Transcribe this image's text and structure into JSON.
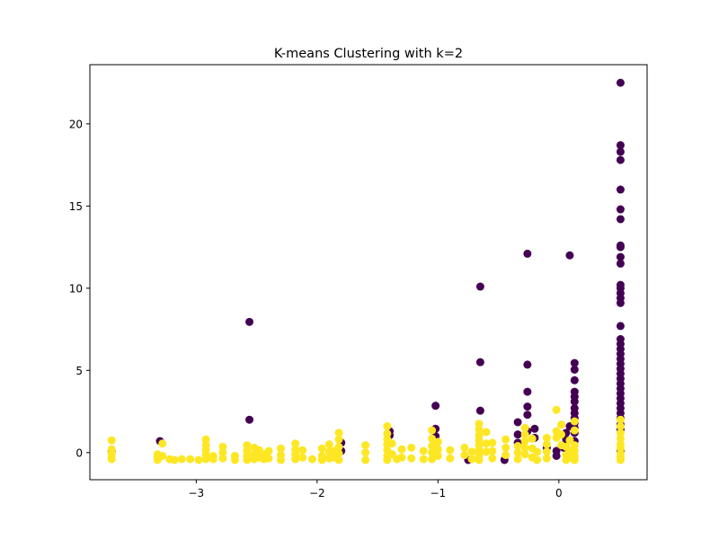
{
  "chart_data": {
    "type": "scatter",
    "title": "K-means Clustering with k=2",
    "xlabel": "",
    "ylabel": "",
    "xlim": [
      -3.88,
      0.73
    ],
    "ylim": [
      -1.65,
      23.6
    ],
    "x_ticks": [
      -3,
      -2,
      -1,
      0
    ],
    "x_tick_labels": [
      "−3",
      "−2",
      "−1",
      "0"
    ],
    "y_ticks": [
      0,
      5,
      10,
      15,
      20
    ],
    "y_tick_labels": [
      "0",
      "5",
      "10",
      "15",
      "20"
    ],
    "grid": false,
    "legend": "none",
    "series": [
      {
        "cluster": 0,
        "color": "#440154",
        "points": [
          [
            0.51,
            22.5
          ],
          [
            0.51,
            18.7
          ],
          [
            0.51,
            18.3
          ],
          [
            0.51,
            17.8
          ],
          [
            0.51,
            16.0
          ],
          [
            0.51,
            14.8
          ],
          [
            0.51,
            14.2
          ],
          [
            0.51,
            12.6
          ],
          [
            0.51,
            12.5
          ],
          [
            0.51,
            11.9
          ],
          [
            0.51,
            11.5
          ],
          [
            0.51,
            10.2
          ],
          [
            0.51,
            10.0
          ],
          [
            0.51,
            9.7
          ],
          [
            0.51,
            9.4
          ],
          [
            0.51,
            9.1
          ],
          [
            0.51,
            7.7
          ],
          [
            0.51,
            6.9
          ],
          [
            0.51,
            6.6
          ],
          [
            0.51,
            6.3
          ],
          [
            0.51,
            6.0
          ],
          [
            0.51,
            5.7
          ],
          [
            0.51,
            5.4
          ],
          [
            0.51,
            5.1
          ],
          [
            0.51,
            4.8
          ],
          [
            0.51,
            4.5
          ],
          [
            0.51,
            4.2
          ],
          [
            0.51,
            3.9
          ],
          [
            0.51,
            3.6
          ],
          [
            0.51,
            3.3
          ],
          [
            0.51,
            3.0
          ],
          [
            0.51,
            2.7
          ],
          [
            0.51,
            2.4
          ],
          [
            0.51,
            2.1
          ],
          [
            0.51,
            0.1
          ],
          [
            0.09,
            12.0
          ],
          [
            -0.26,
            12.1
          ],
          [
            -0.65,
            10.1
          ],
          [
            -2.56,
            7.95
          ],
          [
            -2.56,
            2.0
          ],
          [
            -0.65,
            5.5
          ],
          [
            -0.65,
            2.55
          ],
          [
            -0.26,
            5.35
          ],
          [
            -0.26,
            3.7
          ],
          [
            -0.26,
            2.8
          ],
          [
            -0.26,
            2.3
          ],
          [
            -0.26,
            1.3
          ],
          [
            -0.34,
            1.85
          ],
          [
            -0.34,
            1.1
          ],
          [
            -0.34,
            0.6
          ],
          [
            -0.2,
            1.45
          ],
          [
            -0.2,
            0.9
          ],
          [
            -1.02,
            2.85
          ],
          [
            -1.02,
            1.45
          ],
          [
            -1.02,
            1.0
          ],
          [
            -1.4,
            1.3
          ],
          [
            -1.4,
            1.05
          ],
          [
            -1.8,
            0.6
          ],
          [
            -1.8,
            0.1
          ],
          [
            -3.3,
            0.7
          ],
          [
            -3.7,
            0.1
          ],
          [
            0.13,
            5.45
          ],
          [
            0.13,
            5.05
          ],
          [
            0.13,
            4.4
          ],
          [
            0.13,
            3.7
          ],
          [
            0.13,
            3.4
          ],
          [
            0.13,
            3.1
          ],
          [
            0.13,
            2.7
          ],
          [
            0.13,
            2.4
          ],
          [
            0.13,
            2.1
          ],
          [
            0.13,
            1.8
          ],
          [
            0.13,
            1.5
          ],
          [
            0.13,
            1.2
          ],
          [
            0.13,
            0.7
          ],
          [
            0.09,
            1.6
          ],
          [
            0.06,
            1.2
          ],
          [
            0.06,
            0.8
          ],
          [
            0.04,
            0.3
          ],
          [
            -0.02,
            0.1
          ],
          [
            -0.02,
            -0.2
          ],
          [
            -0.75,
            -0.45
          ],
          [
            -0.45,
            -0.45
          ],
          [
            -0.1,
            0.3
          ],
          [
            0.51,
            1.7
          ],
          [
            0.51,
            1.4
          ]
        ]
      },
      {
        "cluster": 1,
        "color": "#fde725",
        "points": [
          [
            -3.7,
            0.75
          ],
          [
            -3.7,
            0.2
          ],
          [
            -3.7,
            -0.05
          ],
          [
            -3.7,
            -0.2
          ],
          [
            -3.7,
            -0.4
          ],
          [
            -3.32,
            -0.1
          ],
          [
            -3.32,
            -0.3
          ],
          [
            -3.32,
            -0.45
          ],
          [
            -3.28,
            0.55
          ],
          [
            -3.28,
            -0.2
          ],
          [
            -3.22,
            -0.4
          ],
          [
            -3.18,
            -0.45
          ],
          [
            -3.12,
            -0.4
          ],
          [
            -3.05,
            -0.4
          ],
          [
            -2.98,
            -0.45
          ],
          [
            -2.92,
            0.8
          ],
          [
            -2.92,
            0.45
          ],
          [
            -2.92,
            0.15
          ],
          [
            -2.92,
            -0.15
          ],
          [
            -2.92,
            -0.4
          ],
          [
            -2.86,
            -0.2
          ],
          [
            -2.86,
            -0.4
          ],
          [
            -2.78,
            0.35
          ],
          [
            -2.78,
            0.0
          ],
          [
            -2.78,
            -0.35
          ],
          [
            -2.68,
            -0.2
          ],
          [
            -2.68,
            -0.45
          ],
          [
            -2.58,
            0.45
          ],
          [
            -2.58,
            0.1
          ],
          [
            -2.58,
            -0.2
          ],
          [
            -2.58,
            -0.45
          ],
          [
            -2.52,
            0.3
          ],
          [
            -2.52,
            -0.1
          ],
          [
            -2.52,
            -0.4
          ],
          [
            -2.48,
            0.15
          ],
          [
            -2.48,
            -0.3
          ],
          [
            -2.44,
            -0.1
          ],
          [
            -2.44,
            -0.4
          ],
          [
            -2.4,
            0.1
          ],
          [
            -2.4,
            -0.35
          ],
          [
            -2.3,
            0.25
          ],
          [
            -2.3,
            -0.15
          ],
          [
            -2.3,
            -0.45
          ],
          [
            -2.18,
            0.55
          ],
          [
            -2.18,
            0.2
          ],
          [
            -2.18,
            -0.1
          ],
          [
            -2.18,
            -0.4
          ],
          [
            -2.12,
            0.15
          ],
          [
            -2.12,
            -0.3
          ],
          [
            -2.04,
            -0.4
          ],
          [
            -1.96,
            0.25
          ],
          [
            -1.96,
            -0.2
          ],
          [
            -1.96,
            -0.45
          ],
          [
            -1.9,
            0.5
          ],
          [
            -1.9,
            0.05
          ],
          [
            -1.9,
            -0.35
          ],
          [
            -1.86,
            0.1
          ],
          [
            -1.86,
            -0.3
          ],
          [
            -1.82,
            1.2
          ],
          [
            -1.82,
            0.8
          ],
          [
            -1.82,
            0.35
          ],
          [
            -1.82,
            -0.05
          ],
          [
            -1.82,
            -0.45
          ],
          [
            -1.6,
            0.45
          ],
          [
            -1.6,
            0.0
          ],
          [
            -1.6,
            -0.45
          ],
          [
            -1.42,
            1.6
          ],
          [
            -1.42,
            1.15
          ],
          [
            -1.42,
            0.8
          ],
          [
            -1.42,
            0.5
          ],
          [
            -1.42,
            0.15
          ],
          [
            -1.42,
            -0.2
          ],
          [
            -1.42,
            -0.45
          ],
          [
            -1.38,
            0.55
          ],
          [
            -1.38,
            -0.1
          ],
          [
            -1.34,
            -0.4
          ],
          [
            -1.3,
            0.2
          ],
          [
            -1.3,
            -0.3
          ],
          [
            -1.22,
            0.3
          ],
          [
            -1.22,
            -0.35
          ],
          [
            -1.12,
            0.1
          ],
          [
            -1.12,
            -0.4
          ],
          [
            -1.05,
            1.35
          ],
          [
            -1.05,
            0.85
          ],
          [
            -1.05,
            0.4
          ],
          [
            -1.05,
            0.0
          ],
          [
            -1.05,
            -0.4
          ],
          [
            -1.0,
            0.65
          ],
          [
            -1.0,
            0.2
          ],
          [
            -1.0,
            -0.2
          ],
          [
            -0.9,
            0.15
          ],
          [
            -0.9,
            -0.35
          ],
          [
            -0.78,
            0.3
          ],
          [
            -0.78,
            -0.15
          ],
          [
            -0.72,
            0.05
          ],
          [
            -0.72,
            -0.4
          ],
          [
            -0.66,
            1.75
          ],
          [
            -0.66,
            1.4
          ],
          [
            -0.66,
            1.05
          ],
          [
            -0.66,
            0.75
          ],
          [
            -0.66,
            0.45
          ],
          [
            -0.66,
            0.15
          ],
          [
            -0.66,
            -0.15
          ],
          [
            -0.66,
            -0.45
          ],
          [
            -0.6,
            1.25
          ],
          [
            -0.6,
            0.55
          ],
          [
            -0.6,
            0.05
          ],
          [
            -0.55,
            0.6
          ],
          [
            -0.55,
            0.1
          ],
          [
            -0.55,
            -0.35
          ],
          [
            -0.44,
            0.8
          ],
          [
            -0.44,
            0.3
          ],
          [
            -0.44,
            -0.15
          ],
          [
            -0.34,
            0.4
          ],
          [
            -0.34,
            0.0
          ],
          [
            -0.34,
            -0.4
          ],
          [
            -0.28,
            1.5
          ],
          [
            -0.28,
            1.1
          ],
          [
            -0.28,
            0.7
          ],
          [
            -0.28,
            0.3
          ],
          [
            -0.28,
            -0.1
          ],
          [
            -0.22,
            0.85
          ],
          [
            -0.22,
            0.25
          ],
          [
            -0.22,
            -0.3
          ],
          [
            -0.18,
            0.05
          ],
          [
            -0.18,
            -0.45
          ],
          [
            -0.1,
            0.9
          ],
          [
            -0.1,
            0.5
          ],
          [
            -0.1,
            0.05
          ],
          [
            -0.1,
            -0.35
          ],
          [
            -0.02,
            2.6
          ],
          [
            -0.02,
            1.3
          ],
          [
            -0.02,
            0.9
          ],
          [
            0.02,
            1.7
          ],
          [
            0.02,
            1.1
          ],
          [
            0.02,
            0.45
          ],
          [
            0.06,
            0.35
          ],
          [
            0.06,
            -0.15
          ],
          [
            0.06,
            -0.45
          ],
          [
            0.09,
            0.75
          ],
          [
            0.09,
            0.1
          ],
          [
            0.09,
            -0.3
          ],
          [
            0.13,
            1.9
          ],
          [
            0.13,
            1.35
          ],
          [
            0.13,
            0.45
          ],
          [
            0.13,
            0.1
          ],
          [
            0.13,
            -0.2
          ],
          [
            0.13,
            -0.45
          ],
          [
            0.51,
            2.0
          ],
          [
            0.51,
            1.6
          ],
          [
            0.51,
            1.2
          ],
          [
            0.51,
            0.85
          ],
          [
            0.51,
            0.5
          ],
          [
            0.51,
            0.25
          ],
          [
            0.51,
            -0.05
          ],
          [
            0.51,
            -0.3
          ],
          [
            0.51,
            -0.45
          ]
        ]
      }
    ]
  }
}
